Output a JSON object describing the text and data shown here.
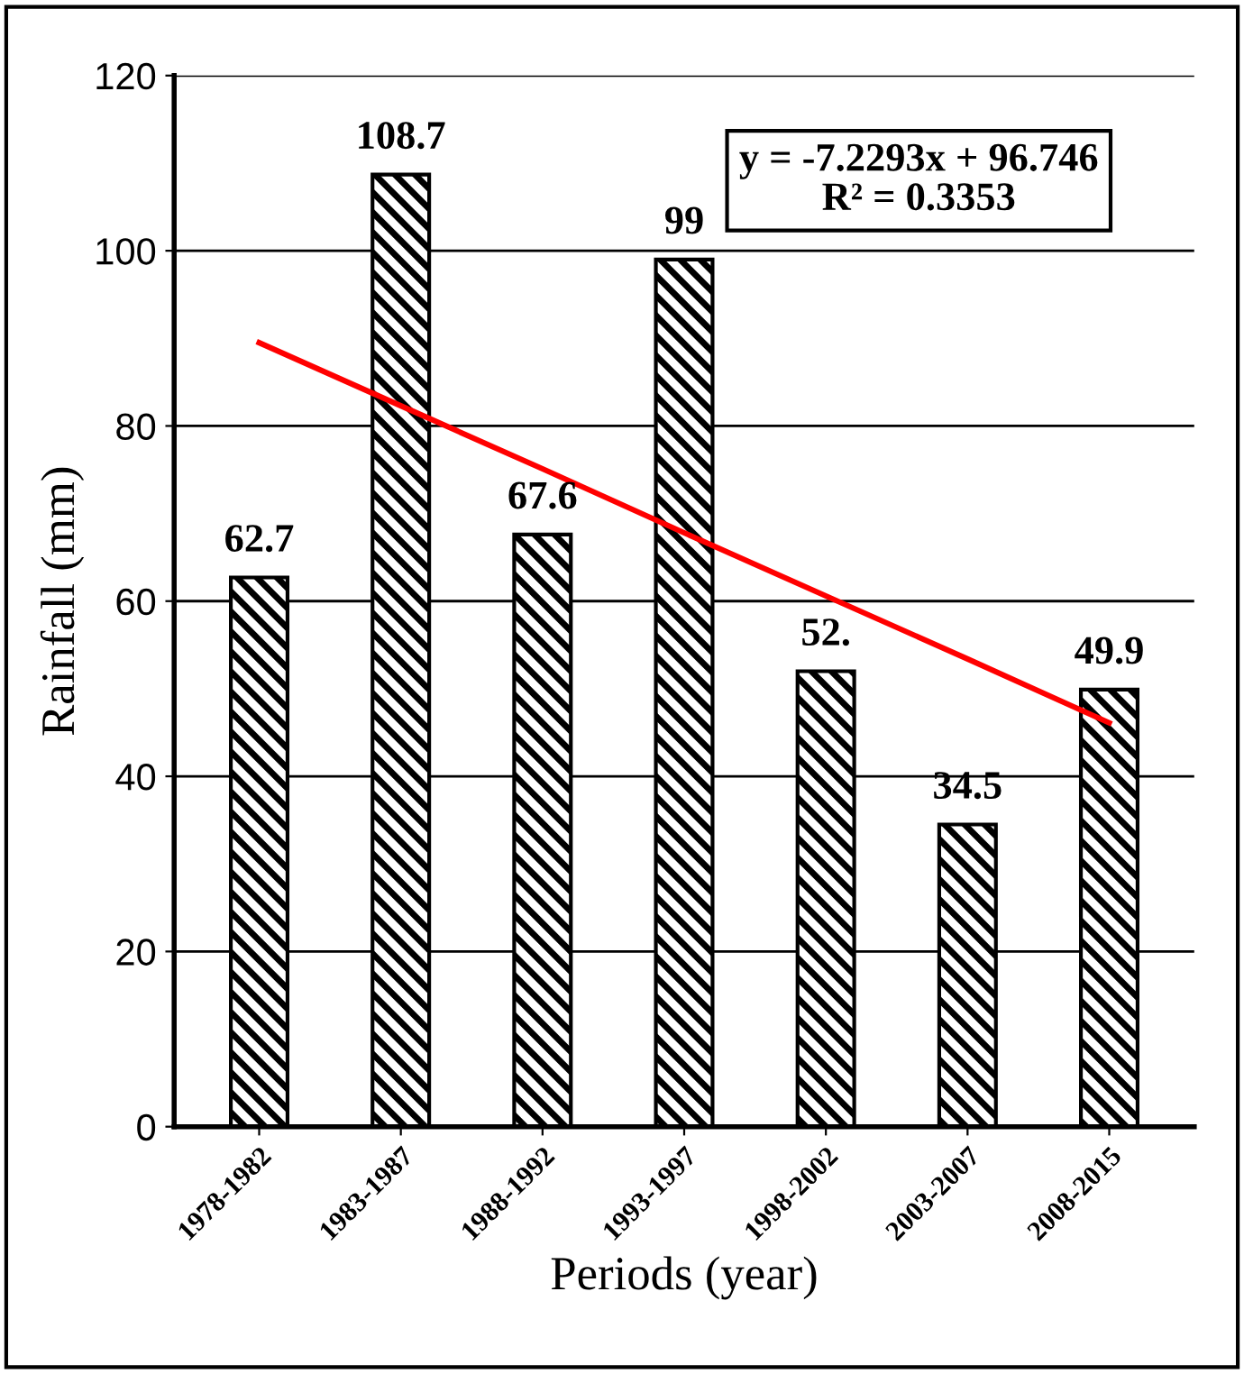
{
  "chart_data": {
    "type": "bar",
    "xlabel": "Periods (year)",
    "ylabel": "Rainfall (mm)",
    "categories": [
      "1978-1982",
      "1983-1987",
      "1988-1992",
      "1993-1997",
      "1998-2002",
      "2003-2007",
      "2008-2015"
    ],
    "series": [
      {
        "color": "#000000",
        "values": [
          62.7,
          108.7,
          67.6,
          99,
          52,
          34.5,
          49.9
        ],
        "value_labels": [
          "62.7",
          "108.7",
          "67.6",
          "99",
          "52.",
          "34.5",
          "49.9"
        ]
      },
      {
        "type": "line",
        "color": "#ff0000",
        "x": [
          "1978-1982",
          "1983-1987",
          "1988-1992",
          "1993-1997",
          "1998-2002",
          "2003-2007",
          "2008-2015"
        ],
        "values": [
          89.5,
          82.3,
          75.1,
          67.8,
          60.6,
          53.4,
          46.1
        ]
      }
    ],
    "annotations": [
      "y = -7.2293x + 96.746\nR² = 0.3353"
    ],
    "ylim": [
      0,
      120
    ],
    "yticks": [
      0,
      20,
      40,
      60,
      80,
      100,
      120
    ],
    "grid": "y"
  }
}
